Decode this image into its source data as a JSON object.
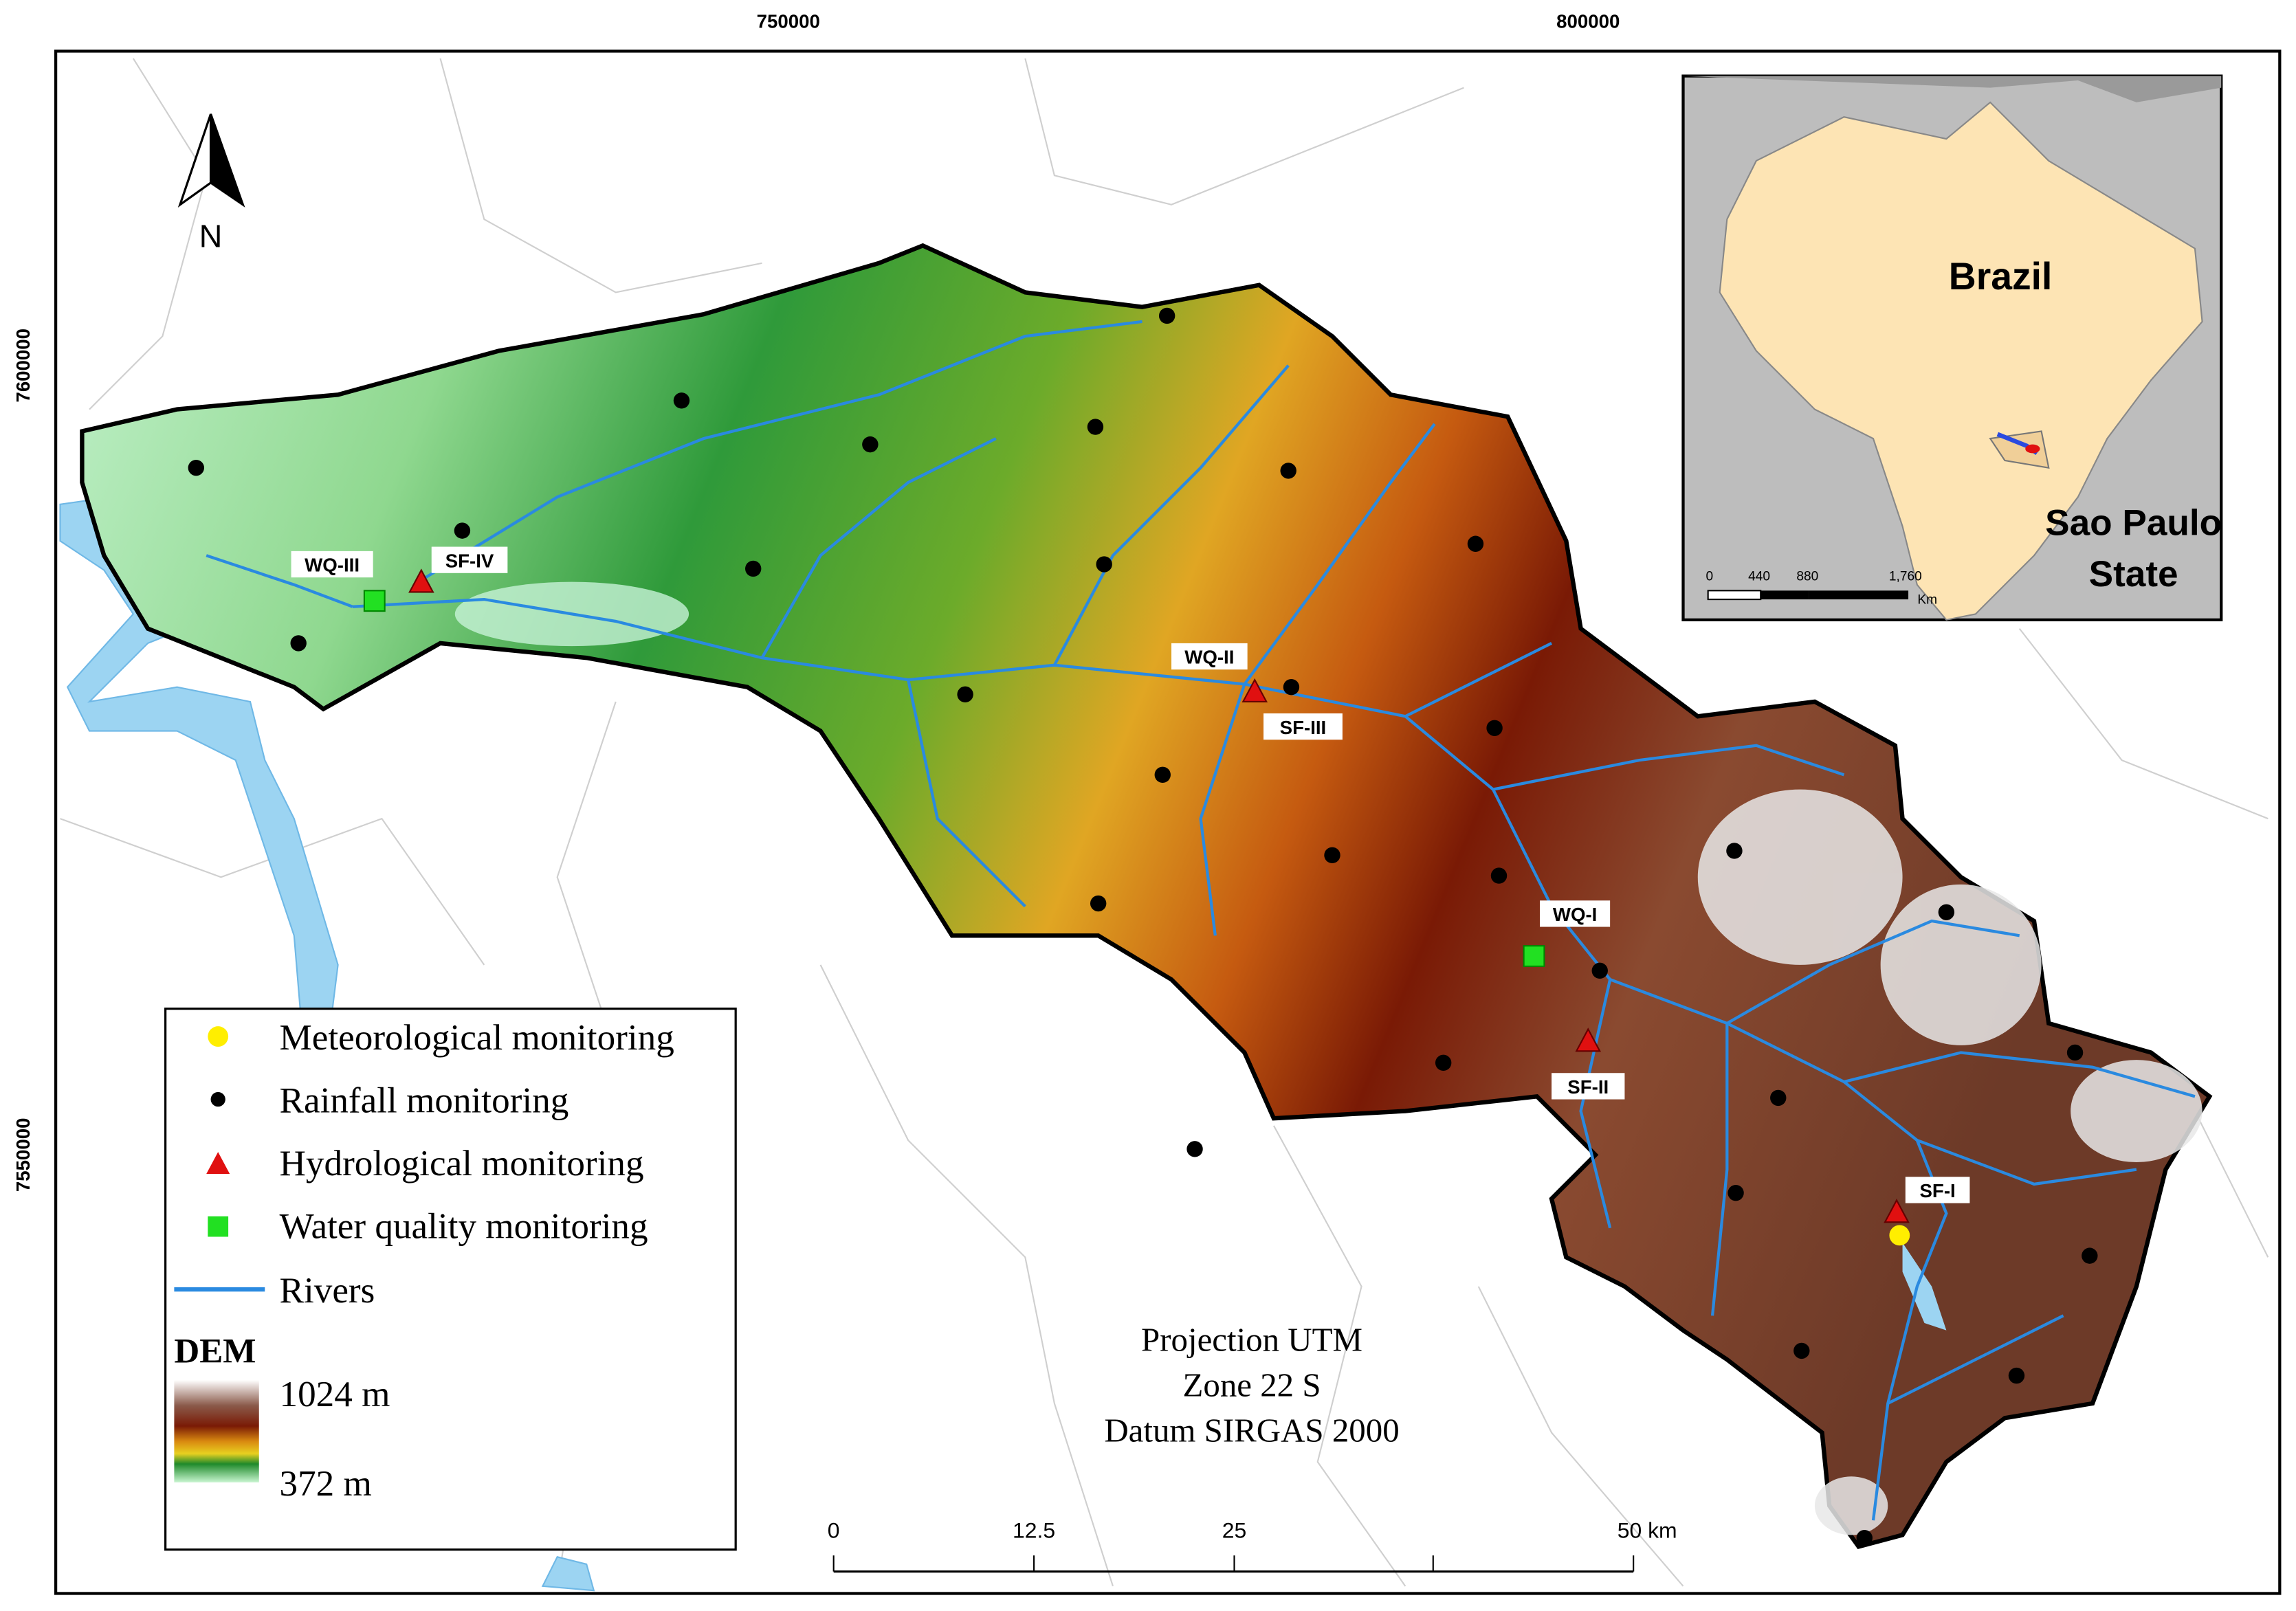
{
  "map": {
    "x_coordinates": [
      "750000",
      "800000"
    ],
    "y_coordinates": [
      "7600000",
      "7550000"
    ],
    "north": "N",
    "stations": [
      "WQ-III",
      "SF-IV",
      "WQ-II",
      "SF-III",
      "WQ-I",
      "SF-II",
      "SF-I"
    ],
    "legend": {
      "items": [
        "Meteorological monitoring",
        "Rainfall monitoring",
        "Hydrological monitoring",
        "Water quality monitoring",
        "Rivers"
      ],
      "dem_title": "DEM",
      "dem_max": "1024 m",
      "dem_min": "372 m"
    },
    "projection": [
      "Projection UTM",
      "Zone 22 S",
      "Datum SIRGAS 2000"
    ],
    "scale_bar": [
      "0",
      "12.5",
      "25",
      "50 km"
    ],
    "inset": {
      "country": "Brazil",
      "state": [
        "Sao Paulo",
        "State"
      ],
      "scale": [
        "0",
        "440",
        "880",
        "1,760",
        "Km"
      ]
    }
  }
}
